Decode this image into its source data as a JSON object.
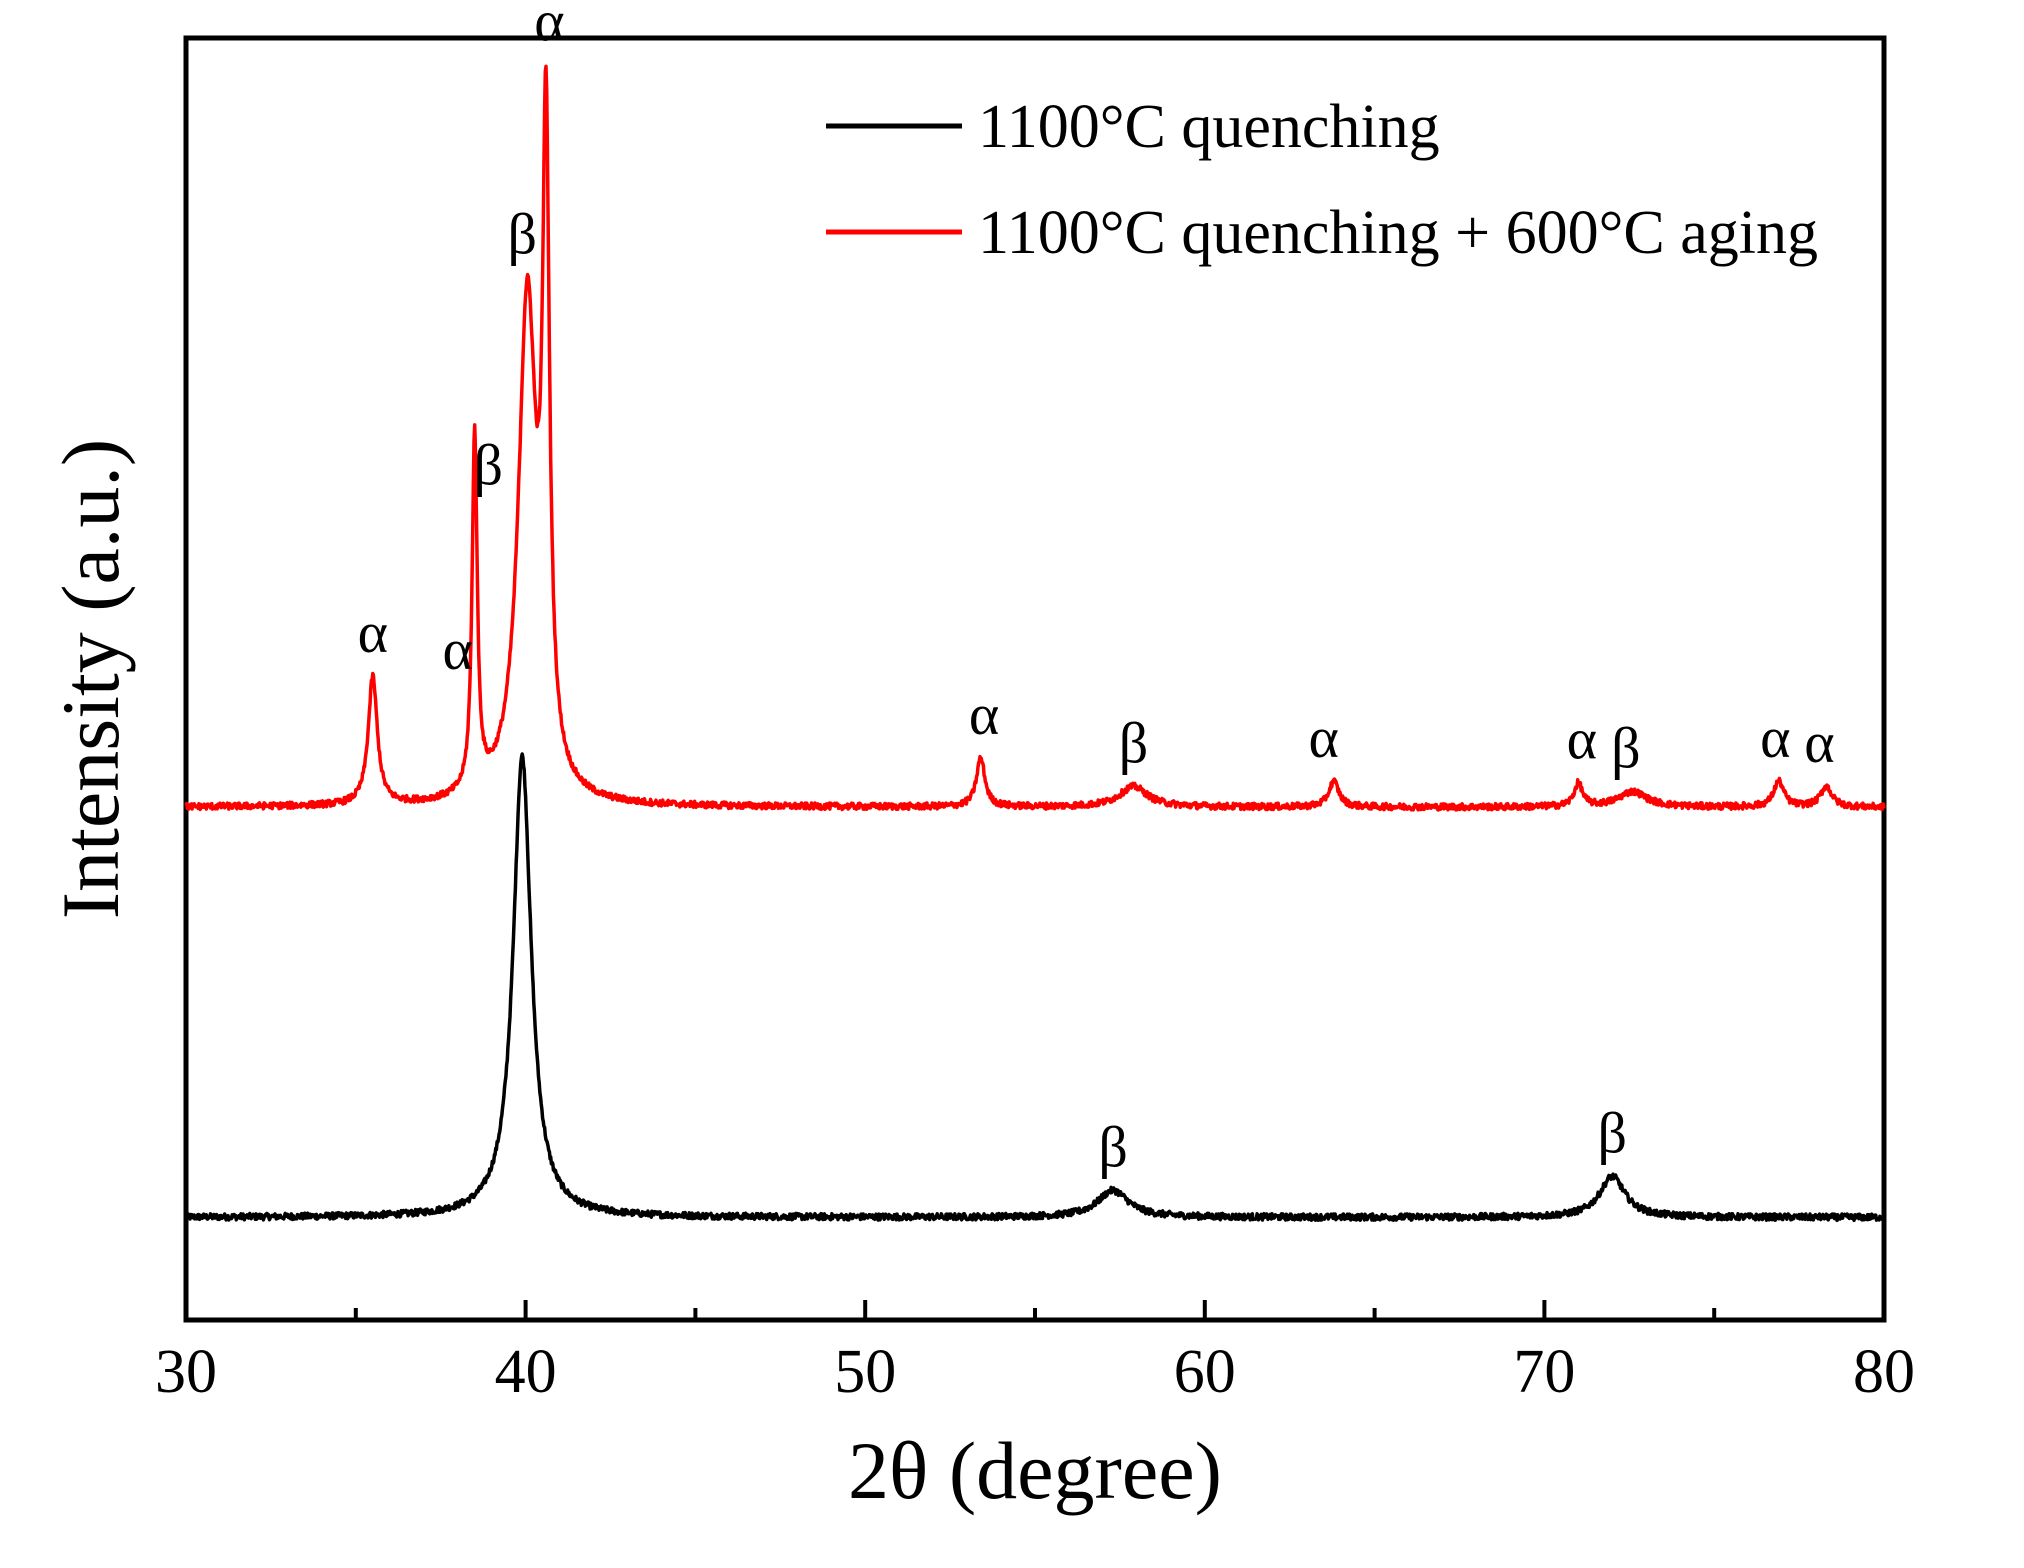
{
  "chart_data": {
    "type": "line",
    "title": "",
    "xlabel": "2θ (degree)",
    "ylabel": "Intensity (a.u.)",
    "xlim": [
      30,
      80
    ],
    "ylim": [
      0,
      100
    ],
    "xticks": [
      30,
      40,
      50,
      60,
      70,
      80
    ],
    "grid": false,
    "legend_position": "top-right",
    "series": [
      {
        "name": "1100°C quenching",
        "color": "#000000",
        "baseline": 8,
        "peaks": [
          {
            "x": 39.9,
            "height": 36,
            "width": 0.32
          },
          {
            "x": 57.3,
            "height": 2.1,
            "width": 0.55
          },
          {
            "x": 72.0,
            "height": 3.2,
            "width": 0.45
          }
        ],
        "annotations": [
          {
            "x": 57.3,
            "label": "β"
          },
          {
            "x": 72.0,
            "label": "β"
          }
        ]
      },
      {
        "name": "1100°C quenching + 600°C aging",
        "color": "#ff0000",
        "baseline": 40,
        "peaks": [
          {
            "x": 35.5,
            "height": 10,
            "width": 0.16
          },
          {
            "x": 38.5,
            "height": 28,
            "width": 0.09
          },
          {
            "x": 40.05,
            "height": 39,
            "width": 0.32
          },
          {
            "x": 40.6,
            "height": 48,
            "width": 0.12
          },
          {
            "x": 53.4,
            "height": 3.8,
            "width": 0.15
          },
          {
            "x": 57.9,
            "height": 1.6,
            "width": 0.5
          },
          {
            "x": 63.8,
            "height": 2.0,
            "width": 0.18
          },
          {
            "x": 71.0,
            "height": 1.8,
            "width": 0.15
          },
          {
            "x": 72.6,
            "height": 1.2,
            "width": 0.5
          },
          {
            "x": 76.9,
            "height": 2.0,
            "width": 0.18
          },
          {
            "x": 78.3,
            "height": 1.6,
            "width": 0.2
          }
        ],
        "annotations": [
          {
            "x": 35.5,
            "label": "α"
          },
          {
            "x": 38.0,
            "label": "α"
          },
          {
            "x": 38.9,
            "label": "β"
          },
          {
            "x": 39.9,
            "label": "β"
          },
          {
            "x": 40.7,
            "label": "α"
          },
          {
            "x": 53.5,
            "label": "α"
          },
          {
            "x": 57.9,
            "label": "β"
          },
          {
            "x": 63.5,
            "label": "α"
          },
          {
            "x": 71.1,
            "label": "α"
          },
          {
            "x": 72.4,
            "label": "β"
          },
          {
            "x": 76.8,
            "label": "α"
          },
          {
            "x": 78.1,
            "label": "α"
          }
        ]
      }
    ]
  }
}
